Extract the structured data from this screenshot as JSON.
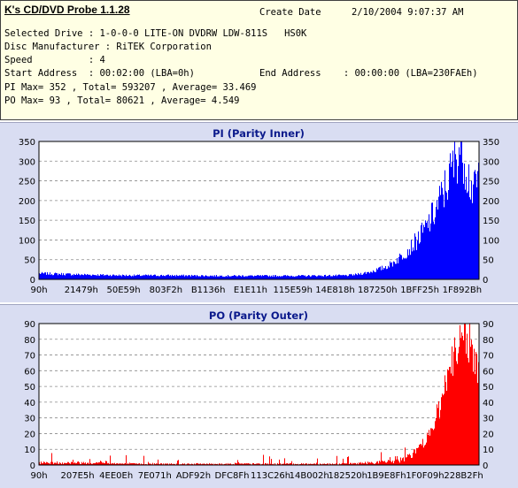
{
  "app": {
    "title": "K's CD/DVD Probe 1.1.28"
  },
  "info": {
    "create_date_label": "Create Date",
    "create_date_value": "2/10/2004 9:07:37 AM",
    "drive_line": "Selected Drive : 1-0-0-0 LITE-ON DVDRW LDW-811S   HS0K",
    "manufacturer_line": "Disc Manufacturer : RiTEK Corporation",
    "speed_line": "Speed          : 4",
    "start_line": "Start Address  : 00:02:00 (LBA=0h)",
    "end_line": "End Address    : 00:00:00 (LBA=230FAEh)",
    "pi_line": "PI Max= 352 , Total= 593207 , Average= 33.469",
    "po_line": "PO Max= 93 , Total= 80621 , Average= 4.549"
  },
  "colors": {
    "pi": "#0000ff",
    "po": "#ff0000",
    "panel": "#d9ddf2",
    "title": "#0b1a8c"
  },
  "chart_data": [
    {
      "type": "area",
      "title": "PI (Parity Inner)",
      "x_tick_labels": [
        "90h",
        "21479h",
        "50E59h",
        "803F2h",
        "B1136h",
        "E1E11h",
        "115E59h",
        "14E818h",
        "187250h",
        "1BFF25h",
        "1F892Bh"
      ],
      "ylim": [
        0,
        350
      ],
      "y_ticks": [
        0,
        50,
        100,
        150,
        200,
        250,
        300,
        350
      ],
      "grid": true,
      "max": 352,
      "x_fraction": [
        0,
        0.1,
        0.2,
        0.3,
        0.4,
        0.5,
        0.6,
        0.7,
        0.72,
        0.75,
        0.78,
        0.8,
        0.82,
        0.84,
        0.86,
        0.88,
        0.9,
        0.92,
        0.94,
        0.95,
        0.96,
        0.97,
        0.98,
        0.99,
        1.0
      ],
      "values": [
        15,
        12,
        10,
        10,
        9,
        9,
        9,
        10,
        12,
        18,
        28,
        38,
        55,
        75,
        100,
        130,
        170,
        220,
        280,
        320,
        345,
        300,
        250,
        220,
        270
      ]
    },
    {
      "type": "area",
      "title": "PO (Parity Outer)",
      "x_tick_labels": [
        "90h",
        "207E5h",
        "4EE0Eh",
        "7E071h",
        "ADF92h",
        "DFC8Fh",
        "113C26h",
        "14B002h",
        "182520h",
        "1B9E8Fh",
        "1F0F09h",
        "228B2Fh"
      ],
      "ylim": [
        0,
        90
      ],
      "y_ticks": [
        0,
        10,
        20,
        30,
        40,
        50,
        60,
        70,
        80,
        90
      ],
      "grid": true,
      "max": 93,
      "x_fraction": [
        0,
        0.1,
        0.2,
        0.3,
        0.4,
        0.5,
        0.6,
        0.7,
        0.75,
        0.8,
        0.82,
        0.84,
        0.86,
        0.88,
        0.9,
        0.92,
        0.94,
        0.96,
        0.97,
        0.98,
        0.99,
        1.0
      ],
      "values": [
        2,
        2,
        1,
        1,
        1,
        1,
        1,
        1,
        2,
        3,
        4,
        6,
        10,
        16,
        28,
        45,
        65,
        82,
        90,
        80,
        65,
        62
      ]
    }
  ]
}
